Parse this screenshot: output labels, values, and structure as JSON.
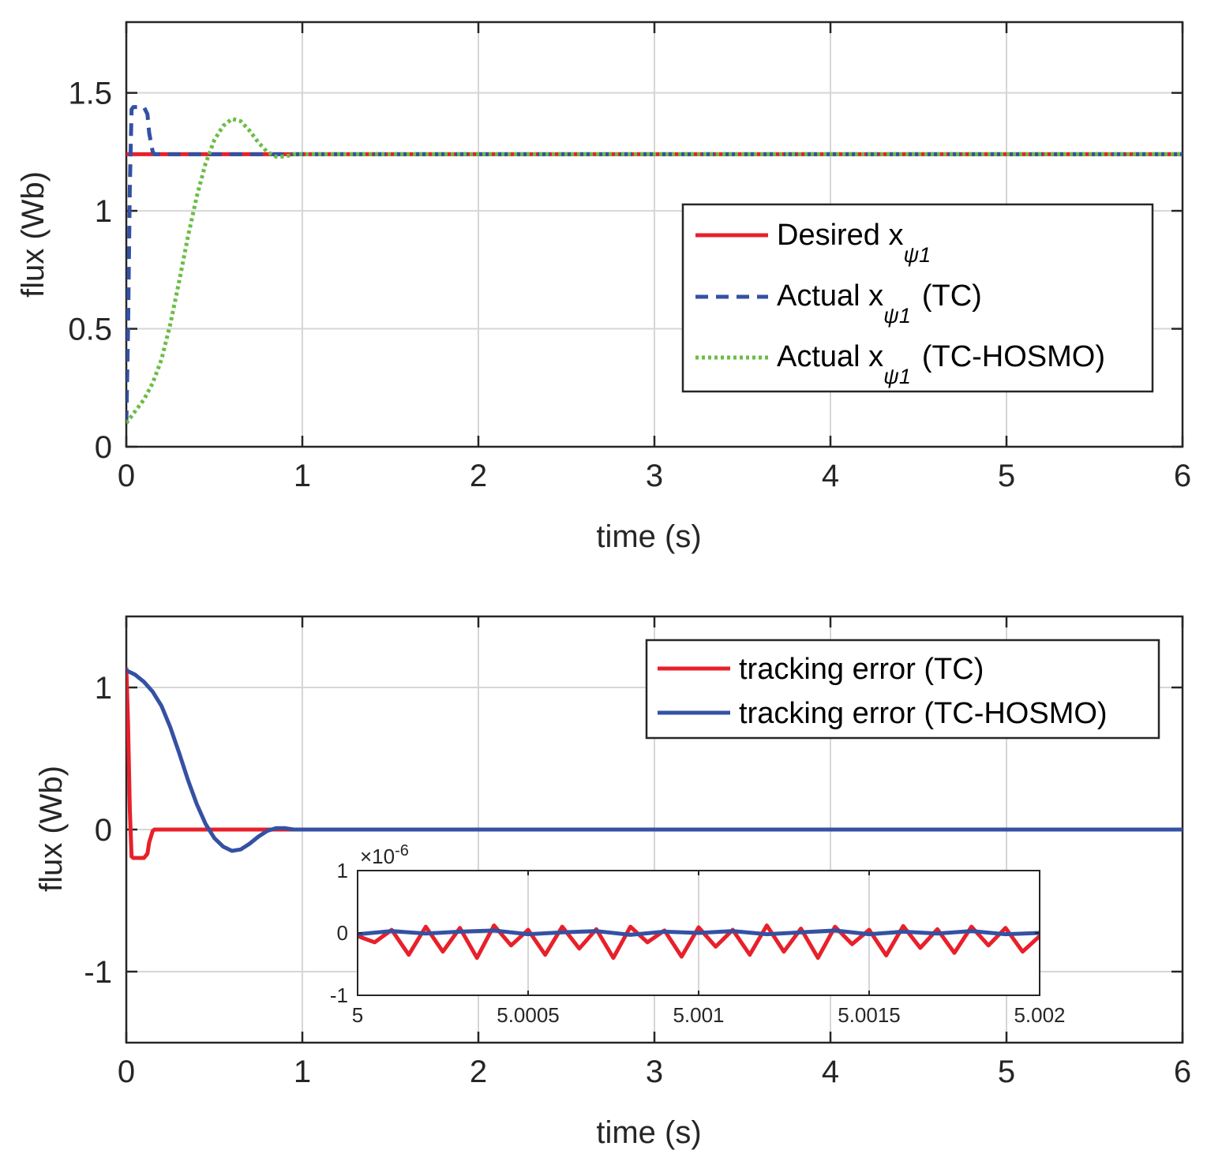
{
  "colors": {
    "red": "#e8202a",
    "blue": "#3451a3",
    "green": "#6bbd45",
    "axis": "#262626",
    "grid": "#d6d6d6"
  },
  "chart_data": [
    {
      "type": "line",
      "xlabel": "time (s)",
      "ylabel": "flux (Wb)",
      "xlim": [
        0,
        6
      ],
      "ylim": [
        0,
        1.8
      ],
      "xticks": [
        "0",
        "1",
        "2",
        "3",
        "4",
        "5",
        "6"
      ],
      "yticks": [
        "0",
        "0.5",
        "1",
        "1.5"
      ],
      "legend_position": "center-right",
      "series": [
        {
          "name": "Desired xψ1",
          "legend_main": "Desired x",
          "legend_sub": "ψ1",
          "legend_suffix": "",
          "style": "solid",
          "color": "red",
          "x": [
            0,
            6
          ],
          "y": [
            1.24,
            1.24
          ]
        },
        {
          "name": "Actual xψ1 (TC)",
          "legend_main": "Actual x",
          "legend_sub": "ψ1",
          "legend_suffix": "(TC)",
          "style": "dashed",
          "color": "blue",
          "x": [
            0,
            0.01,
            0.02,
            0.03,
            0.04,
            0.05,
            0.06,
            0.1,
            0.12,
            0.13,
            0.15,
            0.16,
            6
          ],
          "y": [
            0.1,
            0.5,
            1.1,
            1.43,
            1.44,
            1.44,
            1.44,
            1.44,
            1.41,
            1.33,
            1.25,
            1.24,
            1.24
          ]
        },
        {
          "name": "Actual xψ1 (TC-HOSMO)",
          "legend_main": "Actual x",
          "legend_sub": "ψ1",
          "legend_suffix": "(TC-HOSMO)",
          "style": "dotted",
          "color": "green",
          "x": [
            0,
            0.05,
            0.1,
            0.15,
            0.2,
            0.25,
            0.3,
            0.35,
            0.4,
            0.45,
            0.5,
            0.55,
            0.6,
            0.65,
            0.7,
            0.75,
            0.8,
            0.85,
            0.9,
            0.95,
            1.0,
            6
          ],
          "y": [
            0.1,
            0.15,
            0.2,
            0.27,
            0.37,
            0.52,
            0.7,
            0.89,
            1.06,
            1.2,
            1.3,
            1.36,
            1.39,
            1.38,
            1.34,
            1.29,
            1.25,
            1.23,
            1.23,
            1.24,
            1.24,
            1.24
          ]
        }
      ]
    },
    {
      "type": "line",
      "xlabel": "time (s)",
      "ylabel": "flux (Wb)",
      "xlim": [
        0,
        6
      ],
      "ylim": [
        -1.5,
        1.5
      ],
      "xticks": [
        "0",
        "1",
        "2",
        "3",
        "4",
        "5",
        "6"
      ],
      "yticks": [
        "-1",
        "0",
        "1"
      ],
      "legend_position": "top-right",
      "series": [
        {
          "name": "tracking error (TC)",
          "color": "red",
          "x": [
            0,
            0.01,
            0.02,
            0.03,
            0.04,
            0.05,
            0.06,
            0.1,
            0.12,
            0.13,
            0.15,
            0.16,
            6
          ],
          "y": [
            1.14,
            0.74,
            0.14,
            -0.19,
            -0.2,
            -0.2,
            -0.2,
            -0.2,
            -0.17,
            -0.09,
            -0.01,
            0,
            0
          ]
        },
        {
          "name": "tracking error (TC-HOSMO)",
          "color": "blue",
          "x": [
            0,
            0.05,
            0.1,
            0.15,
            0.2,
            0.25,
            0.3,
            0.35,
            0.4,
            0.45,
            0.5,
            0.55,
            0.6,
            0.65,
            0.7,
            0.75,
            0.8,
            0.85,
            0.9,
            0.95,
            1.0,
            6
          ],
          "y": [
            1.12,
            1.09,
            1.04,
            0.97,
            0.87,
            0.72,
            0.54,
            0.35,
            0.18,
            0.04,
            -0.06,
            -0.12,
            -0.15,
            -0.14,
            -0.1,
            -0.05,
            -0.01,
            0.01,
            0.01,
            0,
            0,
            0
          ]
        }
      ],
      "inset": {
        "type": "line",
        "exponent_label": "×10",
        "exponent_power": "-6",
        "xlim": [
          5,
          5.002
        ],
        "ylim": [
          -1,
          1
        ],
        "xticks": [
          "5",
          "5.0005",
          "5.001",
          "5.0015",
          "5.002"
        ],
        "yticks": [
          "-1",
          "0",
          "1"
        ],
        "series": [
          {
            "name": "tracking error (TC)",
            "color": "red",
            "x": [
              5.0,
              5.00005,
              5.0001,
              5.00015,
              5.0002,
              5.00025,
              5.0003,
              5.00035,
              5.0004,
              5.00045,
              5.0005,
              5.00055,
              5.0006,
              5.00065,
              5.0007,
              5.00075,
              5.0008,
              5.00085,
              5.0009,
              5.00095,
              5.001,
              5.00105,
              5.0011,
              5.00115,
              5.0012,
              5.00125,
              5.0013,
              5.00135,
              5.0014,
              5.00145,
              5.0015,
              5.00155,
              5.0016,
              5.00165,
              5.0017,
              5.00175,
              5.0018,
              5.00185,
              5.0019,
              5.00195,
              5.002
            ],
            "y": [
              -0.05,
              -0.15,
              0.05,
              -0.35,
              0.1,
              -0.3,
              0.08,
              -0.4,
              0.12,
              -0.2,
              0.05,
              -0.35,
              0.1,
              -0.25,
              0.06,
              -0.4,
              0.1,
              -0.15,
              0.04,
              -0.38,
              0.09,
              -0.22,
              0.05,
              -0.35,
              0.12,
              -0.3,
              0.07,
              -0.4,
              0.1,
              -0.18,
              0.05,
              -0.36,
              0.11,
              -0.24,
              0.06,
              -0.32,
              0.1,
              -0.2,
              0.08,
              -0.3,
              -0.05
            ]
          },
          {
            "name": "tracking error (TC-HOSMO)",
            "color": "blue",
            "x": [
              5.0,
              5.0001,
              5.0002,
              5.0003,
              5.0004,
              5.0005,
              5.0006,
              5.0007,
              5.0008,
              5.0009,
              5.001,
              5.0011,
              5.0012,
              5.0013,
              5.0014,
              5.0015,
              5.0016,
              5.0017,
              5.0018,
              5.0019,
              5.002
            ],
            "y": [
              -0.02,
              0.03,
              -0.01,
              0.02,
              0.04,
              -0.02,
              0.01,
              0.03,
              -0.03,
              0.02,
              0.0,
              0.03,
              -0.02,
              0.01,
              0.04,
              -0.02,
              0.02,
              -0.01,
              0.03,
              -0.02,
              0.0
            ]
          }
        ]
      }
    }
  ]
}
